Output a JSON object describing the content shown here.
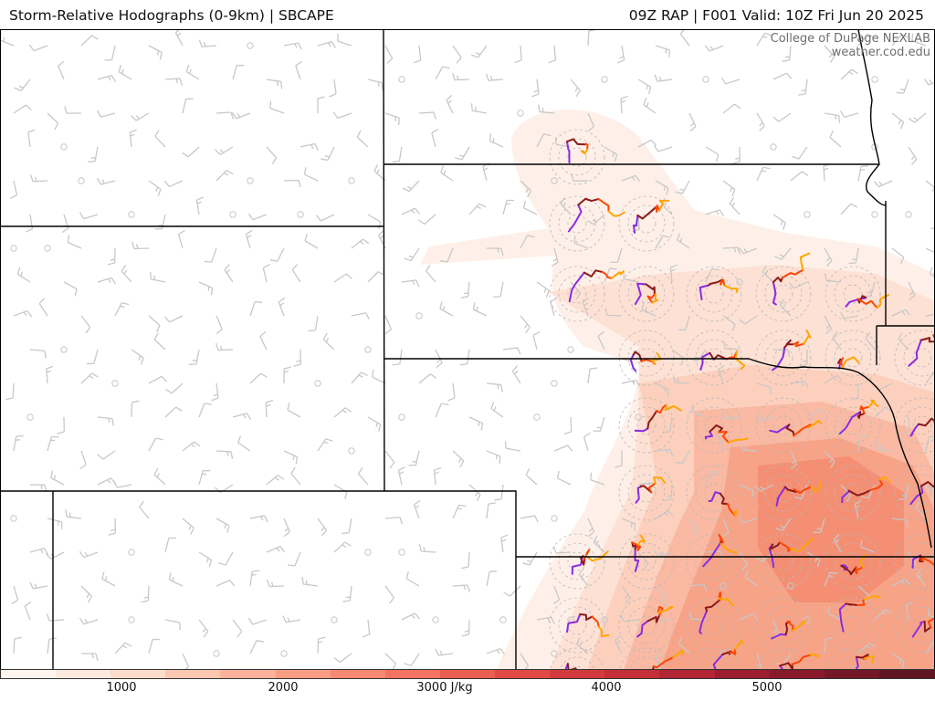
{
  "header": {
    "title": "Storm-Relative Hodographs (0-9km) | SBCAPE",
    "valid": "09Z RAP | F001 Valid: 10Z Fri Jun 20 2025"
  },
  "credit": {
    "line1": "College of DuPage NEXLAB",
    "line2": "weather.cod.edu"
  },
  "colorbar": {
    "unit": "J/kg",
    "ticks": [
      "1000",
      "2000",
      "3000 J/kg",
      "4000",
      "5000"
    ],
    "colors": [
      "#fff5ef",
      "#fee9de",
      "#fddccb",
      "#fcc8b2",
      "#fbb39b",
      "#f99d85",
      "#f78872",
      "#f27361",
      "#ea5e51",
      "#e04a46",
      "#d33a3d",
      "#c42f39",
      "#b12535",
      "#9d1d30",
      "#891a2b",
      "#741827",
      "#611523"
    ]
  },
  "hodograph_colors": [
    "#8b1a1a",
    "#ff4500",
    "#ffa500",
    "#8a2be2"
  ]
}
